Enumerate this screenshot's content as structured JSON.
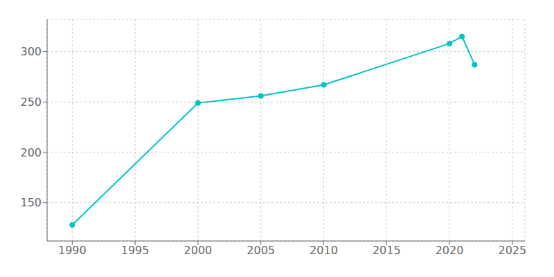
{
  "chart_data": {
    "type": "line",
    "x": [
      1990,
      2000,
      2005,
      2010,
      2020,
      2021,
      2022
    ],
    "values": [
      128,
      249,
      256,
      267,
      308,
      315,
      287
    ],
    "color": "#00C4C4",
    "marker": "circle",
    "xlim": [
      1988,
      2026
    ],
    "ylim": [
      112,
      332
    ],
    "xticks": [
      1990,
      1995,
      2000,
      2005,
      2010,
      2015,
      2020,
      2025
    ],
    "yticks": [
      150,
      200,
      250,
      300
    ],
    "grid": true
  }
}
